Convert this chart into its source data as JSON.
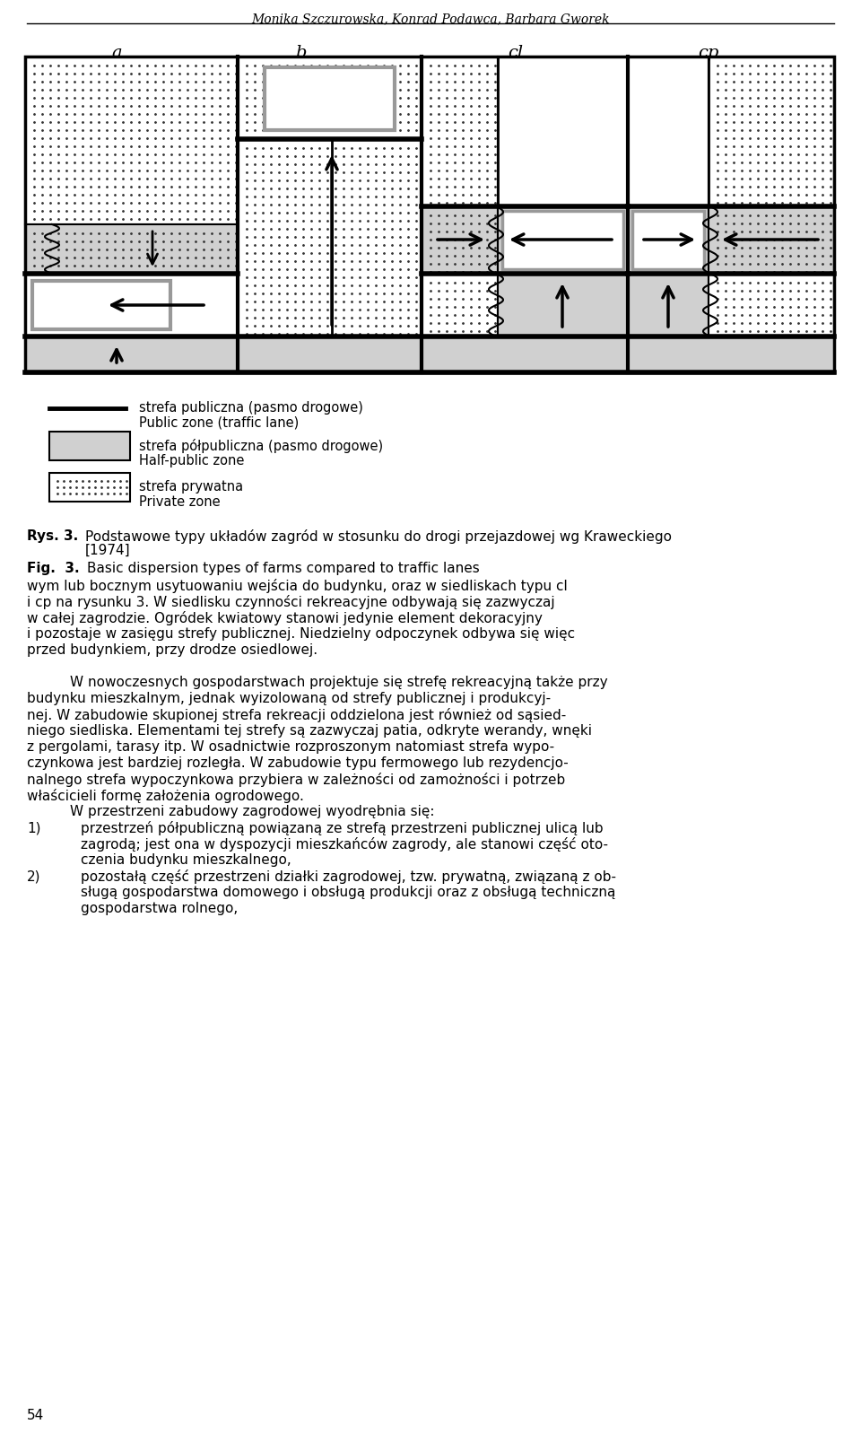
{
  "header": "Monika Szczurowska, Konrad Podawca, Barbara Gworek",
  "labels": [
    "a",
    "b",
    "cl",
    "cp"
  ],
  "legend_items": [
    {
      "label_pl": "strefa publiczna (pasmo drogowe)",
      "label_en": "Public zone (traffic lane)",
      "type": "line"
    },
    {
      "label_pl": "strefa półpubliczna (pasmo drogowe)",
      "label_en": "Half-public zone",
      "type": "rect_gray"
    },
    {
      "label_pl": "strefa prywatna",
      "label_en": "Private zone",
      "type": "rect_dotted"
    }
  ],
  "bg_color": "#ffffff",
  "dot_color": "#333333",
  "gray_color": "#d0d0d0",
  "dark_gray": "#999999",
  "black": "#000000",
  "page_number": "54"
}
